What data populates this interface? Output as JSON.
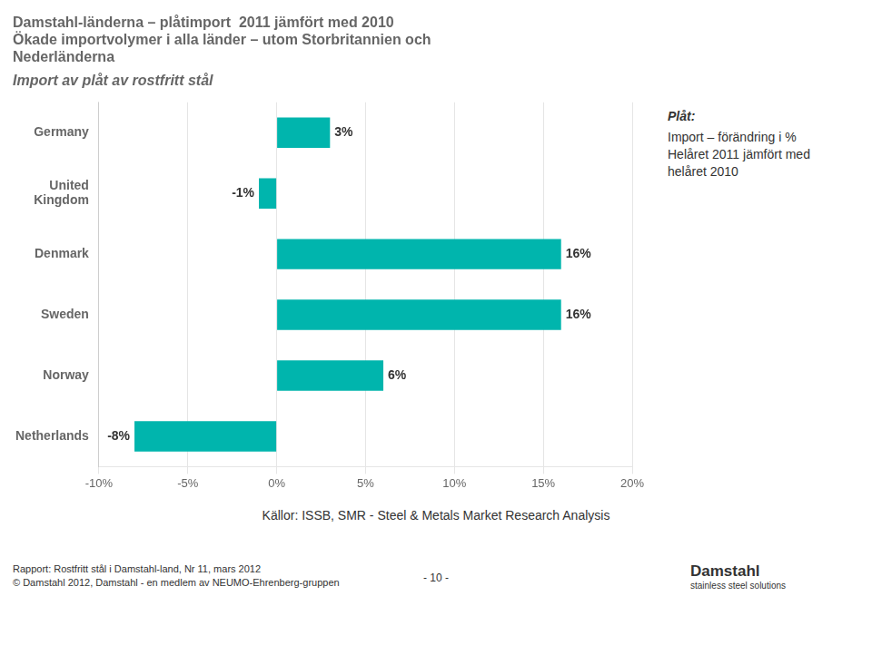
{
  "chart_data": {
    "type": "bar",
    "orientation": "horizontal",
    "title": "Damstahl-länderna – plåtimport  2011 jämfört med 2010\nÖkade importvolymer i alla länder – utom Storbritannien och\nNederländerna",
    "subtitle": "Import av plåt av rostfritt stål",
    "categories": [
      "Germany",
      "United\nKingdom",
      "Denmark",
      "Sweden",
      "Norway",
      "Netherlands"
    ],
    "values": [
      3,
      -1,
      16,
      16,
      6,
      -8
    ],
    "value_labels": [
      "3%",
      "-1%",
      "16%",
      "16%",
      "6%",
      "-8%"
    ],
    "data_labels": true,
    "color": "#00B5AD",
    "xlim": [
      -10,
      20
    ],
    "xticks": [
      {
        "value": -10,
        "label": "-10%"
      },
      {
        "value": -5,
        "label": "-5%"
      },
      {
        "value": 0,
        "label": "0%"
      },
      {
        "value": 5,
        "label": "5%"
      },
      {
        "value": 10,
        "label": "10%"
      },
      {
        "value": 15,
        "label": "15%"
      },
      {
        "value": 20,
        "label": "20%"
      }
    ],
    "grid": true,
    "legend": false,
    "annotations": [
      "Plåt:",
      "Import – förändring i %\nHelåret 2011 jämfört med\nhelåret 2010",
      "Källor: ISSB, ",
      "SMR - Steel & Metals Market Research Analysis",
      "Rapport: Rostfritt stål i Damstahl-land, Nr 11, mars 2012",
      "© Damstahl 2012, Damstahl - en medlem av NEUMO-Ehrenberg-gruppen",
      "- 10 -",
      "Damstahl",
      "stainless steel solutions"
    ]
  }
}
